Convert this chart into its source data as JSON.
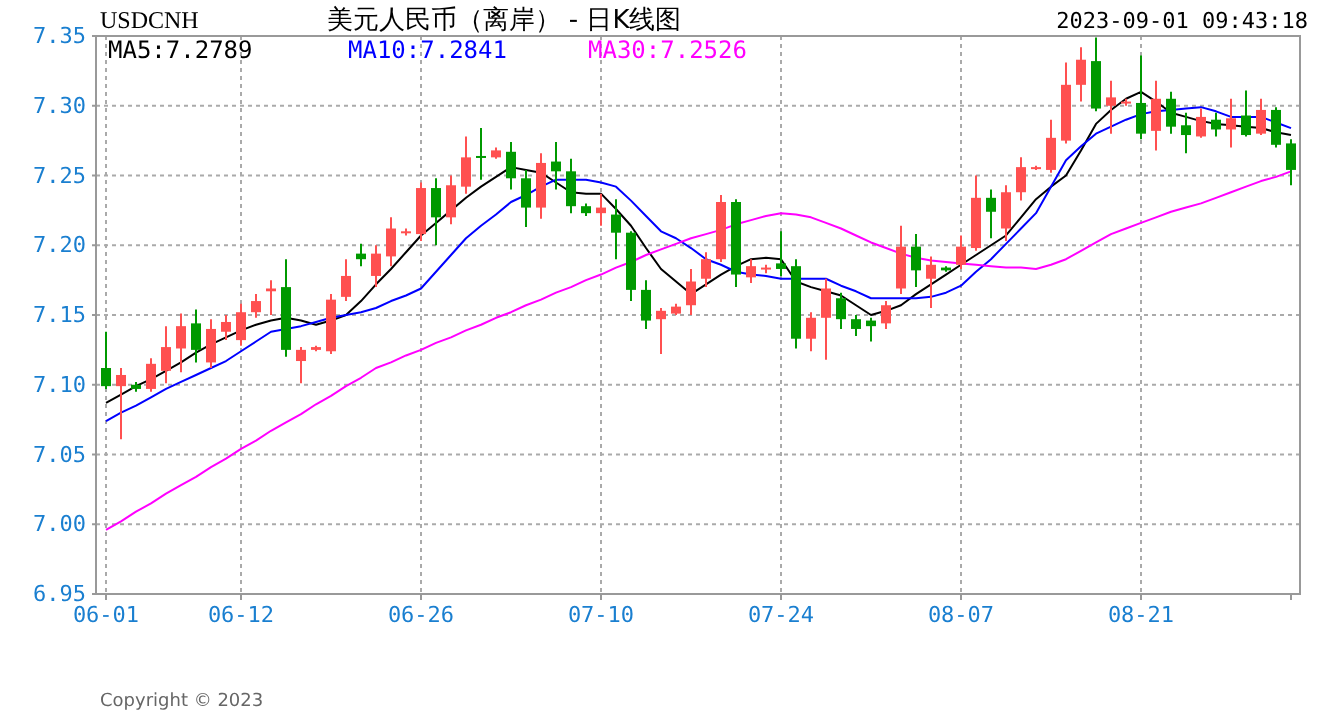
{
  "chart_data": {
    "type": "candlestick",
    "title": "美元人民币（离岸） - 日K线图",
    "annotations": [
      "USDCNH",
      "2023-09-01 09:43:18",
      "Copyright © 2023"
    ],
    "categories": [
      "06-01",
      null,
      null,
      null,
      null,
      null,
      null,
      null,
      null,
      "06-12",
      null,
      null,
      null,
      null,
      null,
      null,
      null,
      null,
      null,
      null,
      null,
      "06-26",
      null,
      null,
      null,
      null,
      null,
      null,
      null,
      null,
      null,
      null,
      null,
      "07-10",
      null,
      null,
      null,
      null,
      null,
      null,
      null,
      null,
      null,
      null,
      null,
      "07-24",
      null,
      null,
      null,
      null,
      null,
      null,
      null,
      null,
      null,
      null,
      null,
      "08-07",
      null,
      null,
      null,
      null,
      null,
      null,
      null,
      null,
      null,
      null,
      null,
      "08-21",
      null,
      null,
      null,
      null,
      null,
      null,
      null,
      null,
      null,
      null
    ],
    "ohlc": [
      [
        7.112,
        7.138,
        7.097,
        7.099
      ],
      [
        7.099,
        7.112,
        7.061,
        7.107
      ],
      [
        7.1,
        7.102,
        7.095,
        7.097
      ],
      [
        7.097,
        7.119,
        7.095,
        7.115
      ],
      [
        7.11,
        7.142,
        7.101,
        7.127
      ],
      [
        7.126,
        7.151,
        7.109,
        7.142
      ],
      [
        7.144,
        7.154,
        7.116,
        7.125
      ],
      [
        7.116,
        7.147,
        7.112,
        7.14
      ],
      [
        7.138,
        7.15,
        7.132,
        7.145
      ],
      [
        7.132,
        7.158,
        7.128,
        7.152
      ],
      [
        7.152,
        7.165,
        7.148,
        7.16
      ],
      [
        7.167,
        7.175,
        7.15,
        7.169
      ],
      [
        7.17,
        7.19,
        7.12,
        7.125
      ],
      [
        7.117,
        7.127,
        7.101,
        7.125
      ],
      [
        7.125,
        7.128,
        7.124,
        7.127
      ],
      [
        7.124,
        7.165,
        7.122,
        7.161
      ],
      [
        7.163,
        7.19,
        7.16,
        7.178
      ],
      [
        7.194,
        7.201,
        7.185,
        7.19
      ],
      [
        7.178,
        7.2,
        7.17,
        7.194
      ],
      [
        7.192,
        7.22,
        7.185,
        7.212
      ],
      [
        7.209,
        7.212,
        7.207,
        7.21
      ],
      [
        7.208,
        7.245,
        7.203,
        7.241
      ],
      [
        7.241,
        7.248,
        7.2,
        7.22
      ],
      [
        7.22,
        7.25,
        7.215,
        7.243
      ],
      [
        7.242,
        7.278,
        7.237,
        7.263
      ],
      [
        7.264,
        7.284,
        7.247,
        7.263
      ],
      [
        7.263,
        7.27,
        7.262,
        7.268
      ],
      [
        7.267,
        7.274,
        7.24,
        7.248
      ],
      [
        7.248,
        7.254,
        7.213,
        7.227
      ],
      [
        7.227,
        7.266,
        7.219,
        7.259
      ],
      [
        7.26,
        7.274,
        7.24,
        7.253
      ],
      [
        7.253,
        7.262,
        7.223,
        7.228
      ],
      [
        7.228,
        7.23,
        7.221,
        7.223
      ],
      [
        7.223,
        7.237,
        7.214,
        7.227
      ],
      [
        7.222,
        7.233,
        7.19,
        7.209
      ],
      [
        7.209,
        7.21,
        7.16,
        7.168
      ],
      [
        7.168,
        7.175,
        7.14,
        7.146
      ],
      [
        7.147,
        7.155,
        7.122,
        7.153
      ],
      [
        7.151,
        7.158,
        7.15,
        7.156
      ],
      [
        7.157,
        7.183,
        7.15,
        7.174
      ],
      [
        7.176,
        7.195,
        7.17,
        7.19
      ],
      [
        7.19,
        7.236,
        7.188,
        7.231
      ],
      [
        7.231,
        7.233,
        7.17,
        7.179
      ],
      [
        7.177,
        7.19,
        7.173,
        7.185
      ],
      [
        7.183,
        7.186,
        7.18,
        7.184
      ],
      [
        7.187,
        7.21,
        7.178,
        7.183
      ],
      [
        7.185,
        7.19,
        7.126,
        7.133
      ],
      [
        7.133,
        7.152,
        7.124,
        7.148
      ],
      [
        7.148,
        7.176,
        7.118,
        7.169
      ],
      [
        7.162,
        7.166,
        7.14,
        7.147
      ],
      [
        7.147,
        7.15,
        7.135,
        7.14
      ],
      [
        7.146,
        7.148,
        7.131,
        7.142
      ],
      [
        7.144,
        7.16,
        7.14,
        7.157
      ],
      [
        7.169,
        7.214,
        7.165,
        7.199
      ],
      [
        7.199,
        7.208,
        7.17,
        7.182
      ],
      [
        7.176,
        7.192,
        7.155,
        7.186
      ],
      [
        7.184,
        7.185,
        7.181,
        7.182
      ],
      [
        7.186,
        7.207,
        7.183,
        7.199
      ],
      [
        7.198,
        7.25,
        7.196,
        7.234
      ],
      [
        7.234,
        7.24,
        7.205,
        7.224
      ],
      [
        7.212,
        7.243,
        7.203,
        7.238
      ],
      [
        7.238,
        7.263,
        7.232,
        7.256
      ],
      [
        7.255,
        7.257,
        7.254,
        7.256
      ],
      [
        7.254,
        7.29,
        7.252,
        7.277
      ],
      [
        7.275,
        7.331,
        7.273,
        7.315
      ],
      [
        7.315,
        7.342,
        7.303,
        7.333
      ],
      [
        7.332,
        7.349,
        7.296,
        7.298
      ],
      [
        7.3,
        7.318,
        7.28,
        7.306
      ],
      [
        7.302,
        7.305,
        7.3,
        7.303
      ],
      [
        7.302,
        7.336,
        7.276,
        7.28
      ],
      [
        7.282,
        7.318,
        7.268,
        7.305
      ],
      [
        7.305,
        7.31,
        7.28,
        7.285
      ],
      [
        7.286,
        7.295,
        7.266,
        7.279
      ],
      [
        7.278,
        7.298,
        7.277,
        7.292
      ],
      [
        7.29,
        7.295,
        7.278,
        7.283
      ],
      [
        7.283,
        7.305,
        7.27,
        7.291
      ],
      [
        7.293,
        7.311,
        7.278,
        7.279
      ],
      [
        7.28,
        7.305,
        7.279,
        7.297
      ],
      [
        7.297,
        7.299,
        7.27,
        7.272
      ],
      [
        7.273,
        7.276,
        7.243,
        7.254
      ]
    ],
    "series": [
      {
        "name": "MA5:7.2789",
        "type": "line",
        "color": "#000000",
        "values": [
          7.087,
          7.093,
          7.099,
          7.104,
          7.11,
          7.116,
          7.123,
          7.129,
          7.134,
          7.139,
          7.143,
          7.146,
          7.148,
          7.146,
          7.143,
          7.146,
          7.15,
          7.16,
          7.172,
          7.183,
          7.195,
          7.207,
          7.216,
          7.225,
          7.234,
          7.242,
          7.249,
          7.256,
          7.254,
          7.252,
          7.245,
          7.238,
          7.237,
          7.237,
          7.226,
          7.214,
          7.198,
          7.183,
          7.174,
          7.165,
          7.172,
          7.179,
          7.185,
          7.19,
          7.191,
          7.19,
          7.174,
          7.17,
          7.167,
          7.164,
          7.157,
          7.15,
          7.153,
          7.157,
          7.165,
          7.172,
          7.179,
          7.186,
          7.193,
          7.2,
          7.207,
          7.22,
          7.233,
          7.242,
          7.25,
          7.268,
          7.287,
          7.297,
          7.305,
          7.31,
          7.303,
          7.295,
          7.292,
          7.289,
          7.287,
          7.286,
          7.285,
          7.284,
          7.281,
          7.279
        ]
      },
      {
        "name": "MA10:7.2841",
        "type": "line",
        "color": "#0000ff",
        "values": [
          7.074,
          7.08,
          7.085,
          7.091,
          7.097,
          7.102,
          7.107,
          7.112,
          7.117,
          7.124,
          7.131,
          7.138,
          7.14,
          7.142,
          7.145,
          7.148,
          7.15,
          7.152,
          7.155,
          7.16,
          7.164,
          7.169,
          7.181,
          7.193,
          7.205,
          7.214,
          7.222,
          7.231,
          7.236,
          7.242,
          7.247,
          7.247,
          7.247,
          7.245,
          7.242,
          7.232,
          7.221,
          7.21,
          7.205,
          7.198,
          7.19,
          7.186,
          7.181,
          7.179,
          7.178,
          7.176,
          7.176,
          7.176,
          7.176,
          7.171,
          7.167,
          7.162,
          7.162,
          7.162,
          7.162,
          7.163,
          7.166,
          7.171,
          7.181,
          7.19,
          7.201,
          7.212,
          7.223,
          7.242,
          7.261,
          7.271,
          7.28,
          7.285,
          7.29,
          7.294,
          7.296,
          7.297,
          7.298,
          7.299,
          7.296,
          7.292,
          7.292,
          7.292,
          7.288,
          7.284
        ]
      },
      {
        "name": "MA30:7.2526",
        "type": "line",
        "color": "#ff00ff",
        "values": [
          6.996,
          7.002,
          7.009,
          7.015,
          7.022,
          7.028,
          7.034,
          7.041,
          7.047,
          7.054,
          7.06,
          7.067,
          7.073,
          7.079,
          7.086,
          7.092,
          7.099,
          7.105,
          7.112,
          7.116,
          7.121,
          7.125,
          7.13,
          7.134,
          7.139,
          7.143,
          7.148,
          7.152,
          7.157,
          7.161,
          7.166,
          7.17,
          7.175,
          7.179,
          7.184,
          7.188,
          7.193,
          7.197,
          7.201,
          7.205,
          7.208,
          7.211,
          7.215,
          7.218,
          7.221,
          7.223,
          7.222,
          7.22,
          7.216,
          7.212,
          7.207,
          7.202,
          7.198,
          7.194,
          7.191,
          7.189,
          7.188,
          7.187,
          7.186,
          7.185,
          7.184,
          7.184,
          7.183,
          7.186,
          7.19,
          7.196,
          7.202,
          7.208,
          7.212,
          7.216,
          7.22,
          7.224,
          7.227,
          7.23,
          7.234,
          7.238,
          7.242,
          7.246,
          7.249,
          7.253
        ]
      }
    ],
    "ylim": [
      6.95,
      7.35
    ],
    "yticks": [
      6.95,
      {
        "value": 7.0,
        "label": "7.00"
      },
      7.05,
      {
        "value": 7.1,
        "label": "7.10"
      },
      7.15,
      {
        "value": 7.2,
        "label": "7.20"
      },
      7.25,
      {
        "value": 7.3,
        "label": "7.30"
      },
      7.35
    ],
    "grid": true,
    "legend": "top left"
  }
}
